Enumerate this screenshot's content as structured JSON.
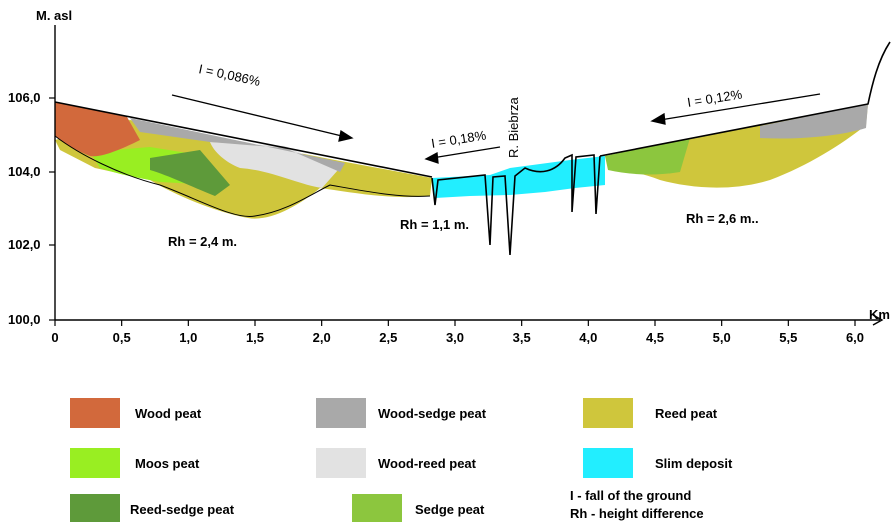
{
  "axis": {
    "y_title": "M. asl",
    "x_unit": "Km",
    "y_ticks": [
      "106,0",
      "104,0",
      "102,0",
      "100,0"
    ],
    "x_ticks": [
      "0",
      "0,5",
      "1,0",
      "1,5",
      "2,0",
      "2,5",
      "3,0",
      "3,5",
      "4,0",
      "4,5",
      "5,0",
      "5,5",
      "6,0"
    ]
  },
  "annotations": {
    "slope_left": "I = 0,086%",
    "slope_center": "I = 0,18%",
    "slope_right": "I = 0,12%",
    "river": "R. Biebrza",
    "rh_left": "Rh = 2,4 m.",
    "rh_center": "Rh = 1,1 m.",
    "rh_right": "Rh = 2,6 m.."
  },
  "legend": {
    "items": [
      {
        "label": "Wood peat",
        "color": "#d2693c"
      },
      {
        "label": "Wood-sedge peat",
        "color": "#a9a9a9"
      },
      {
        "label": "Reed peat",
        "color": "#cfc63c"
      },
      {
        "label": "Moos peat",
        "color": "#99ee22"
      },
      {
        "label": "Wood-reed peat",
        "color": "#e2e2e2"
      },
      {
        "label": "Slim deposit",
        "color": "#22eeff"
      },
      {
        "label": "Reed-sedge peat",
        "color": "#5e9a3a"
      },
      {
        "label": "Sedge peat",
        "color": "#8cc63e"
      }
    ],
    "notes": [
      "I - fall of the ground",
      "Rh - height difference"
    ]
  }
}
